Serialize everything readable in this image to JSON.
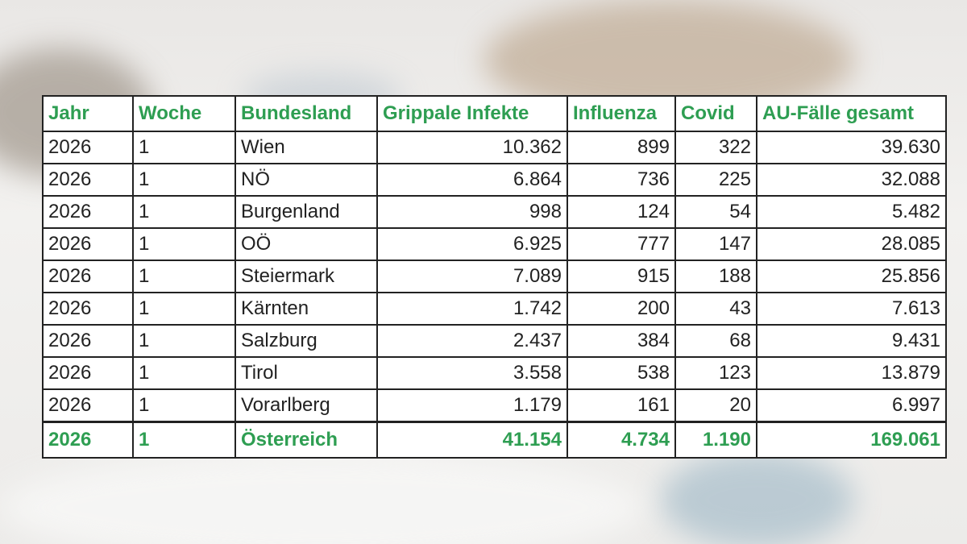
{
  "table": {
    "header": [
      "Jahr",
      "Woche",
      "Bundesland",
      "Grippale Infekte",
      "Influenza",
      "Covid",
      "AU-Fälle gesamt"
    ],
    "rows": [
      [
        "2026",
        "1",
        "Wien",
        "10.362",
        "899",
        "322",
        "39.630"
      ],
      [
        "2026",
        "1",
        "NÖ",
        "6.864",
        "736",
        "225",
        "32.088"
      ],
      [
        "2026",
        "1",
        "Burgenland",
        "998",
        "124",
        "54",
        "5.482"
      ],
      [
        "2026",
        "1",
        "OÖ",
        "6.925",
        "777",
        "147",
        "28.085"
      ],
      [
        "2026",
        "1",
        "Steiermark",
        "7.089",
        "915",
        "188",
        "25.856"
      ],
      [
        "2026",
        "1",
        "Kärnten",
        "1.742",
        "200",
        "43",
        "7.613"
      ],
      [
        "2026",
        "1",
        "Salzburg",
        "2.437",
        "384",
        "68",
        "9.431"
      ],
      [
        "2026",
        "1",
        "Tirol",
        "3.558",
        "538",
        "123",
        "13.879"
      ],
      [
        "2026",
        "1",
        "Vorarlberg",
        "1.179",
        "161",
        "20",
        "6.997"
      ]
    ],
    "total": [
      "2026",
      "1",
      "Österreich",
      "41.154",
      "4.734",
      "1.190",
      "169.061"
    ]
  }
}
